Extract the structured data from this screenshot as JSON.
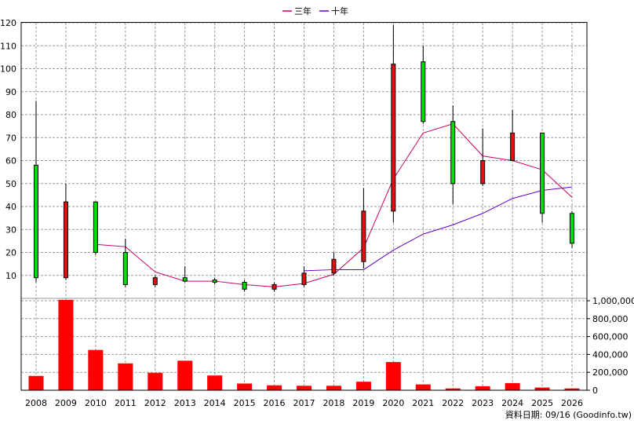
{
  "chart_data": {
    "type": "candlestick",
    "legend": [
      {
        "name": "三年",
        "color": "#cc0066"
      },
      {
        "name": "十年",
        "color": "#6600cc"
      }
    ],
    "footer": "資料日期: 09/16 (Goodinfo.tw)",
    "price_axis": {
      "ticks": [
        10,
        20,
        30,
        40,
        50,
        60,
        70,
        80,
        90,
        100,
        110,
        120
      ],
      "range": [
        0,
        120
      ]
    },
    "volume_axis": {
      "ticks": [
        0,
        200000,
        400000,
        600000,
        800000,
        1000000
      ],
      "labels": [
        "0",
        "200,000",
        "400,000",
        "600,000",
        "800,000",
        "1,000,000"
      ],
      "range": [
        0,
        1000000
      ]
    },
    "years": [
      "2008",
      "2009",
      "2010",
      "2011",
      "2012",
      "2013",
      "2014",
      "2015",
      "2016",
      "2017",
      "2018",
      "2019",
      "2020",
      "2021",
      "2022",
      "2023",
      "2024",
      "2025",
      "2026"
    ],
    "candles": [
      {
        "year": "2008",
        "open": 58,
        "high": 86,
        "low": 7,
        "close": 9,
        "color": "green"
      },
      {
        "year": "2009",
        "open": 9,
        "high": 50,
        "low": 8,
        "close": 42,
        "color": "red"
      },
      {
        "year": "2010",
        "open": 42,
        "high": 42,
        "low": 19,
        "close": 20,
        "color": "green"
      },
      {
        "year": "2011",
        "open": 20,
        "high": 26,
        "low": 5,
        "close": 6,
        "color": "green"
      },
      {
        "year": "2012",
        "open": 6,
        "high": 10,
        "low": 5,
        "close": 9,
        "color": "red"
      },
      {
        "year": "2013",
        "open": 9,
        "high": 14,
        "low": 7,
        "close": 7.5,
        "color": "green"
      },
      {
        "year": "2014",
        "open": 8,
        "high": 9,
        "low": 6,
        "close": 7,
        "color": "green"
      },
      {
        "year": "2015",
        "open": 7,
        "high": 8,
        "low": 3,
        "close": 4,
        "color": "green"
      },
      {
        "year": "2016",
        "open": 4,
        "high": 7,
        "low": 3,
        "close": 6,
        "color": "red"
      },
      {
        "year": "2017",
        "open": 6,
        "high": 14,
        "low": 5,
        "close": 11,
        "color": "red"
      },
      {
        "year": "2018",
        "open": 11,
        "high": 20,
        "low": 10,
        "close": 17,
        "color": "red"
      },
      {
        "year": "2019",
        "open": 16,
        "high": 48,
        "low": 13,
        "close": 38,
        "color": "red"
      },
      {
        "year": "2020",
        "open": 38,
        "high": 119,
        "low": 33,
        "close": 102,
        "color": "red"
      },
      {
        "year": "2021",
        "open": 103,
        "high": 110,
        "low": 76,
        "close": 77,
        "color": "green"
      },
      {
        "year": "2022",
        "open": 77,
        "high": 84,
        "low": 41,
        "close": 50,
        "color": "green"
      },
      {
        "year": "2023",
        "open": 50,
        "high": 74,
        "low": 49,
        "close": 60,
        "color": "red"
      },
      {
        "year": "2024",
        "open": 60,
        "high": 82,
        "low": 60,
        "close": 72,
        "color": "red"
      },
      {
        "year": "2025",
        "open": 72,
        "high": 72,
        "low": 33,
        "close": 37,
        "color": "green"
      },
      {
        "year": "2026",
        "open": 37,
        "high": 38,
        "low": 22,
        "close": 24,
        "color": "green"
      }
    ],
    "ma3": [
      null,
      null,
      23.5,
      22.5,
      11.5,
      7.5,
      7.5,
      6,
      5,
      6.5,
      10.5,
      22,
      52,
      72,
      76,
      62,
      60,
      56,
      44
    ],
    "ma10": [
      null,
      null,
      null,
      null,
      null,
      null,
      null,
      null,
      null,
      12,
      12.5,
      12.5,
      21,
      28,
      32,
      37,
      43.5,
      47,
      48.5
    ],
    "volume": [
      160000,
      1010000,
      450000,
      300000,
      195000,
      330000,
      165000,
      75000,
      55000,
      50000,
      50000,
      95000,
      315000,
      65000,
      20000,
      45000,
      80000,
      30000,
      20000
    ]
  }
}
